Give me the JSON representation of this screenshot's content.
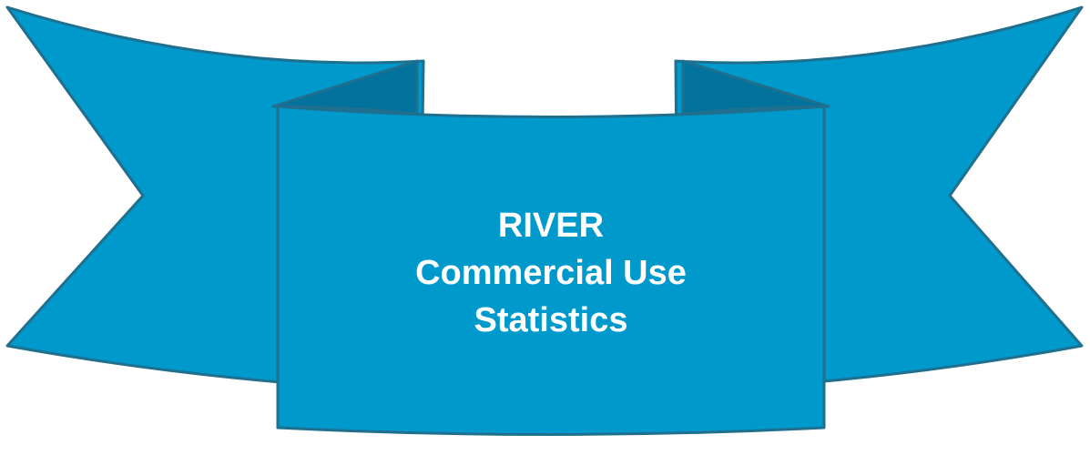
{
  "banner": {
    "line1": "RIVER",
    "line2": "Commercial Use",
    "line3": "Statistics"
  },
  "colors": {
    "ribbon_fill": "#0099CC",
    "ribbon_outline": "#1F6F8F",
    "fold_fill": "#00729C",
    "text": "#FFFFFF"
  }
}
